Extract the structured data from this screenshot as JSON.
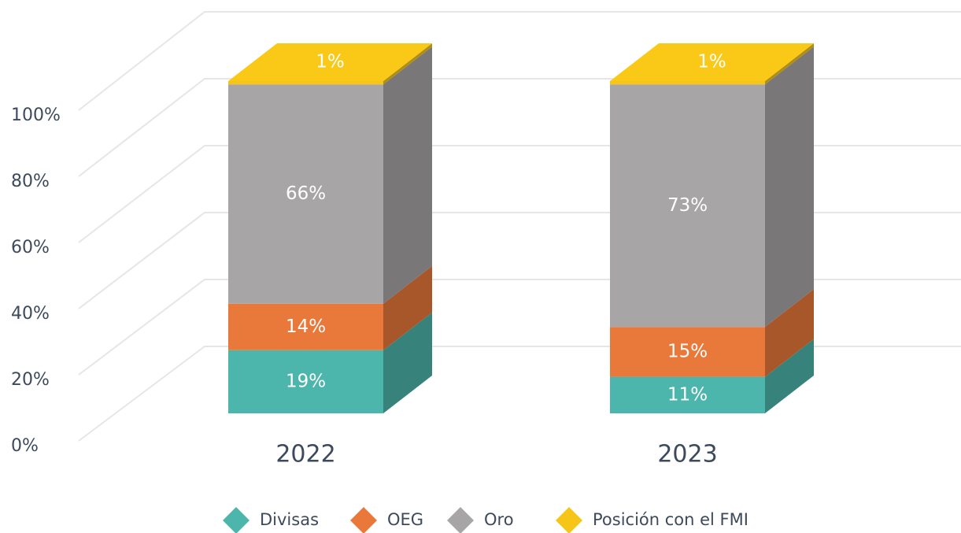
{
  "chart_data": {
    "type": "bar3d_stacked",
    "categories": [
      "2022",
      "2023"
    ],
    "series": [
      {
        "name": "Divisas",
        "color": "#4db6ac",
        "values": [
          19,
          11
        ],
        "value_labels": [
          "19%",
          "11%"
        ]
      },
      {
        "name": "OEG",
        "color": "#e8793a",
        "values": [
          14,
          15
        ],
        "value_labels": [
          "14%",
          "15%"
        ]
      },
      {
        "name": "Oro",
        "color": "#a8a5a7",
        "values": [
          66,
          73
        ],
        "value_labels": [
          "66%",
          "73%"
        ]
      },
      {
        "name": "Posición con el FMI",
        "color": "#f5c518",
        "values": [
          1,
          1
        ],
        "value_labels": [
          "1%",
          "1%"
        ]
      }
    ],
    "ylim": [
      0,
      100
    ],
    "yticks": [
      {
        "value": 0,
        "label": "0%"
      },
      {
        "value": 20,
        "label": "20%"
      },
      {
        "value": 40,
        "label": "40%"
      },
      {
        "value": 60,
        "label": "60%"
      },
      {
        "value": 80,
        "label": "80%"
      },
      {
        "value": 100,
        "label": "100%"
      }
    ],
    "grid": true,
    "legend": "bottom"
  }
}
